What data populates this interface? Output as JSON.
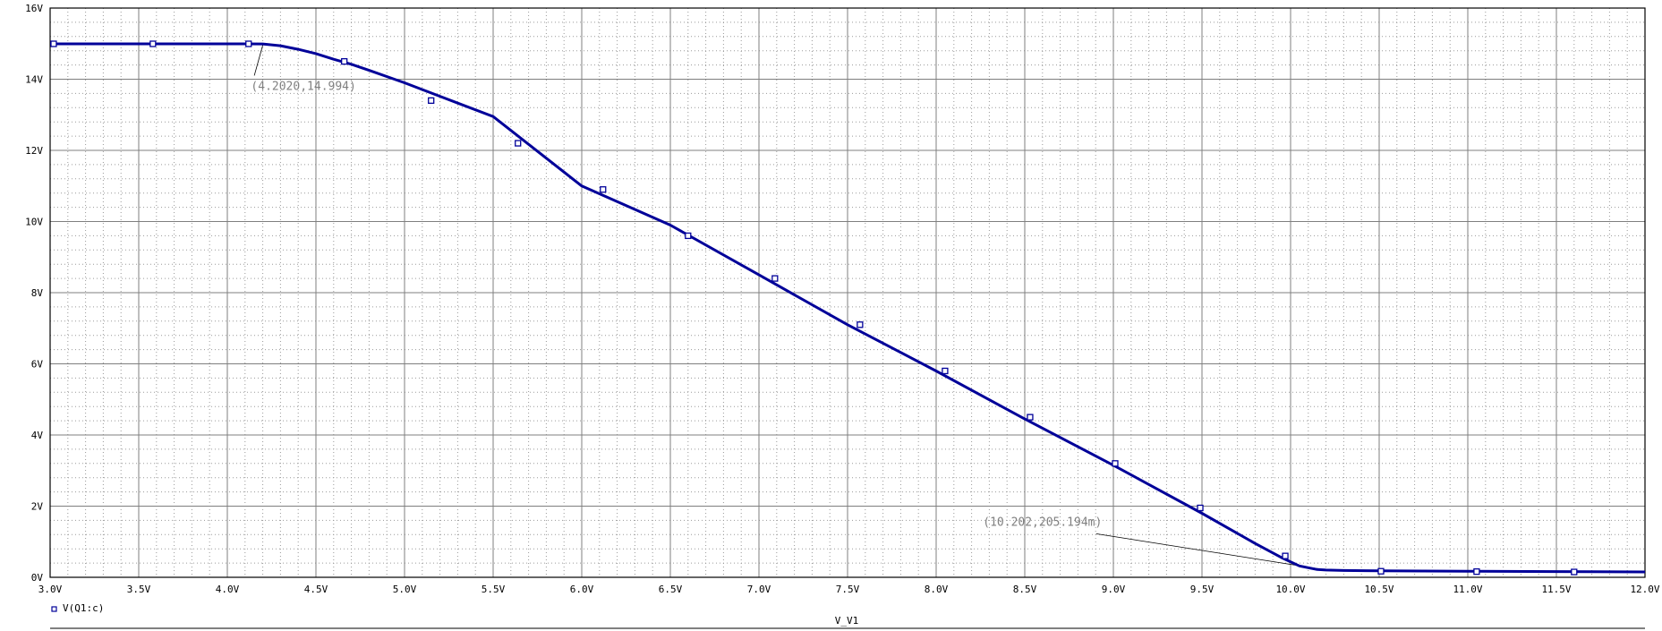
{
  "chart_data": {
    "type": "line",
    "xlabel": "V_V1",
    "ylabel": "",
    "xlim": [
      3.0,
      12.0
    ],
    "ylim": [
      0,
      16
    ],
    "x_ticks": [
      "3.0V",
      "3.5V",
      "4.0V",
      "4.5V",
      "5.0V",
      "5.5V",
      "6.0V",
      "6.5V",
      "7.0V",
      "7.5V",
      "8.0V",
      "8.5V",
      "9.0V",
      "9.5V",
      "10.0V",
      "10.5V",
      "11.0V",
      "11.5V",
      "12.0V"
    ],
    "y_ticks": [
      "0V",
      "2V",
      "4V",
      "6V",
      "8V",
      "10V",
      "12V",
      "14V",
      "16V"
    ],
    "grid": true,
    "legend_position": "bottom-left",
    "colors": {
      "trace": "#000099",
      "grid_major": "#7f7f7f",
      "grid_minor": "#9a9a9a",
      "annotation": "#808080"
    },
    "series": [
      {
        "name": "V(Q1:c)",
        "x": [
          3.0,
          3.3,
          3.6,
          3.9,
          4.1,
          4.2,
          4.3,
          4.4,
          4.5,
          4.6,
          4.7,
          4.8,
          5.0,
          5.2,
          5.5,
          6.0,
          6.5,
          7.0,
          7.5,
          8.0,
          8.5,
          9.0,
          9.5,
          9.8,
          9.95,
          10.05,
          10.15,
          10.2,
          10.3,
          10.5,
          11.0,
          11.5,
          12.0
        ],
        "y": [
          14.994,
          14.994,
          14.994,
          14.994,
          14.994,
          14.99,
          14.94,
          14.84,
          14.72,
          14.56,
          14.42,
          14.25,
          13.9,
          13.52,
          12.95,
          11.0,
          9.9,
          8.5,
          7.1,
          5.8,
          4.45,
          3.15,
          1.8,
          0.95,
          0.55,
          0.32,
          0.22,
          0.205,
          0.19,
          0.18,
          0.17,
          0.16,
          0.15
        ]
      }
    ],
    "markers": {
      "x": [
        3.02,
        3.58,
        4.12,
        4.66,
        5.15,
        5.64,
        6.12,
        6.6,
        7.09,
        7.57,
        8.05,
        8.53,
        9.01,
        9.49,
        9.97,
        10.51,
        11.05,
        11.6
      ],
      "y": [
        14.994,
        14.994,
        14.994,
        14.5,
        13.4,
        12.2,
        10.9,
        9.6,
        8.4,
        7.1,
        5.8,
        4.5,
        3.2,
        1.95,
        0.6,
        0.17,
        0.16,
        0.15
      ]
    },
    "annotations": [
      {
        "text": "(4.2020,14.994)",
        "point": [
          4.202,
          14.994
        ],
        "label_at": [
          4.43,
          13.7
        ]
      },
      {
        "text": "(10.202,205.194m)",
        "point": [
          10.202,
          0.205
        ],
        "label_at": [
          8.6,
          1.45
        ]
      }
    ]
  }
}
